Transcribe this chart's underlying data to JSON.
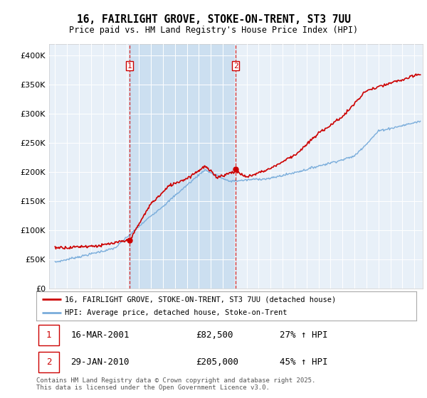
{
  "title": "16, FAIRLIGHT GROVE, STOKE-ON-TRENT, ST3 7UU",
  "subtitle": "Price paid vs. HM Land Registry's House Price Index (HPI)",
  "ylabel_ticks": [
    0,
    50000,
    100000,
    150000,
    200000,
    250000,
    300000,
    350000,
    400000
  ],
  "ylim": [
    0,
    420000
  ],
  "xlim_start": 1994.5,
  "xlim_end": 2025.7,
  "sale1_year": 2001.21,
  "sale1_price": 82500,
  "sale1_label": "1",
  "sale1_date": "16-MAR-2001",
  "sale1_amount": "£82,500",
  "sale1_hpi": "27% ↑ HPI",
  "sale2_year": 2010.08,
  "sale2_price": 205000,
  "sale2_label": "2",
  "sale2_date": "29-JAN-2010",
  "sale2_amount": "£205,000",
  "sale2_hpi": "45% ↑ HPI",
  "hpi_color": "#7aaddb",
  "property_color": "#cc0000",
  "shade_color": "#ccdff0",
  "background_color": "#e8f0f8",
  "plot_bg_color": "#e8f0f8",
  "legend_line1": "16, FAIRLIGHT GROVE, STOKE-ON-TRENT, ST3 7UU (detached house)",
  "legend_line2": "HPI: Average price, detached house, Stoke-on-Trent",
  "footer": "Contains HM Land Registry data © Crown copyright and database right 2025.\nThis data is licensed under the Open Government Licence v3.0."
}
